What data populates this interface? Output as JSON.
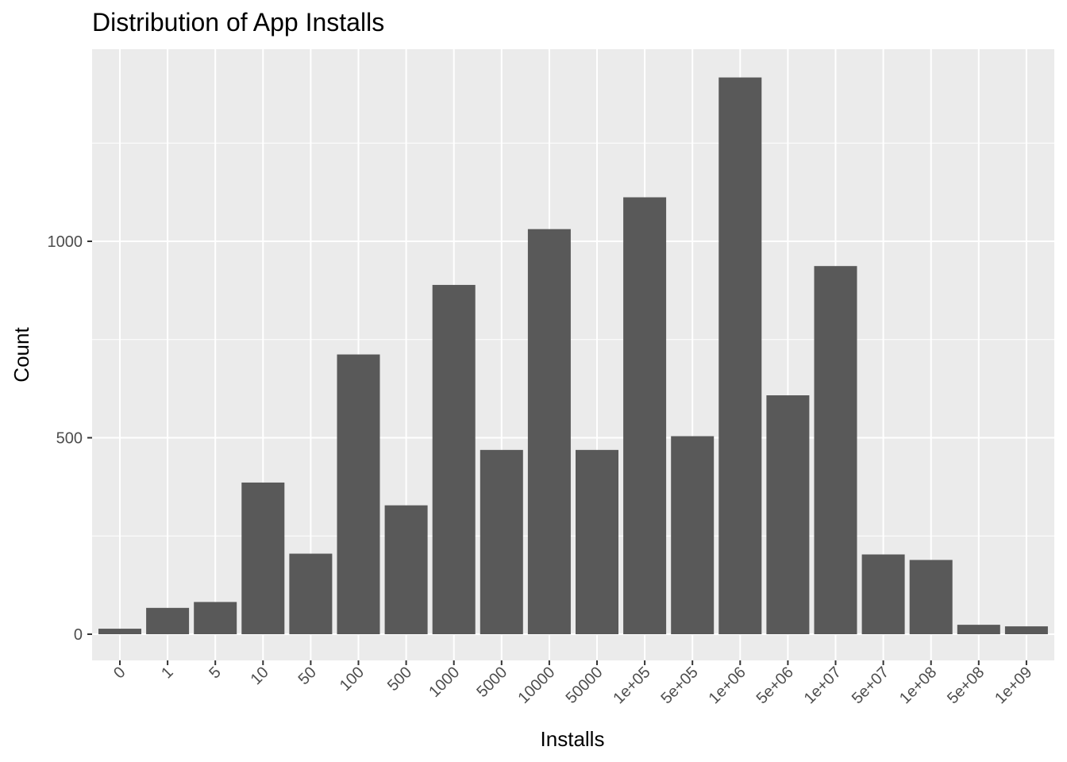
{
  "chart_data": {
    "type": "bar",
    "title": "Distribution of App Installs",
    "xlabel": "Installs",
    "ylabel": "Count",
    "categories": [
      "0",
      "1",
      "5",
      "10",
      "50",
      "100",
      "500",
      "1000",
      "5000",
      "10000",
      "50000",
      "1e+05",
      "5e+05",
      "1e+06",
      "5e+06",
      "1e+07",
      "5e+07",
      "1e+08",
      "5e+08",
      "1e+09"
    ],
    "values": [
      14,
      67,
      82,
      386,
      205,
      712,
      328,
      889,
      469,
      1031,
      469,
      1112,
      504,
      1417,
      608,
      937,
      203,
      189,
      24,
      20
    ],
    "yticks": [
      0,
      500,
      1000
    ],
    "ylim": [
      -70,
      1490
    ],
    "bar_color": "#595959",
    "panel_color": "#ebebeb",
    "grid_color": "#ffffff",
    "grid": true,
    "legend": "none"
  }
}
